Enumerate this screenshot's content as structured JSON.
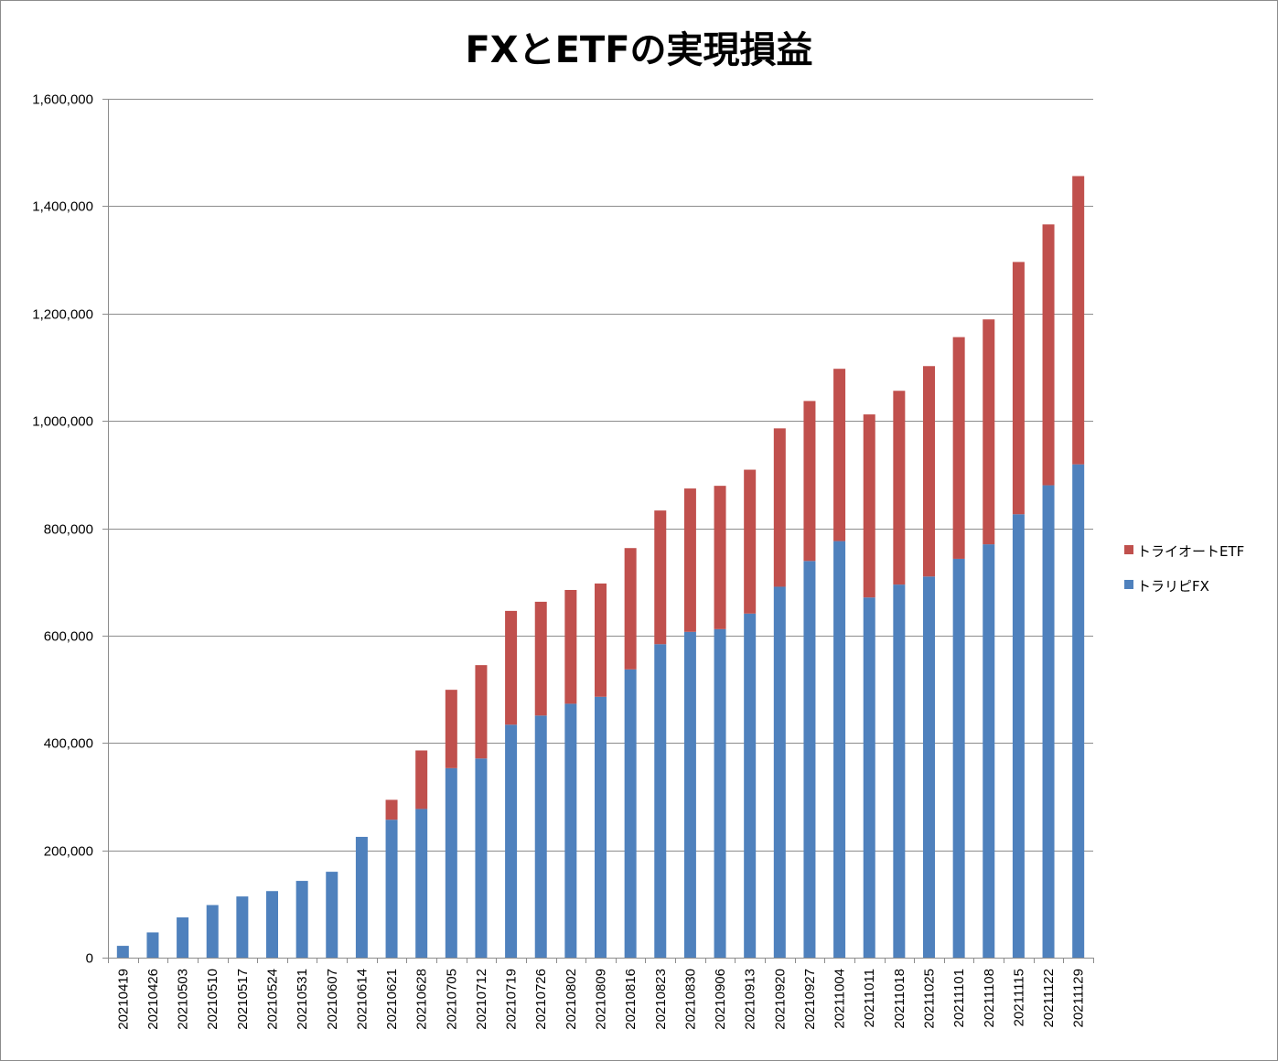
{
  "chart_data": {
    "type": "bar",
    "stacked": true,
    "title": "FXとETFの実現損益",
    "xlabel": "",
    "ylabel": "",
    "ylim": [
      0,
      1600000
    ],
    "yticks": [
      "0",
      "200,000",
      "400,000",
      "600,000",
      "800,000",
      "1,000,000",
      "1,200,000",
      "1,400,000",
      "1,600,000"
    ],
    "grid": true,
    "legend_position": "right",
    "categories": [
      "20210419",
      "20210426",
      "20210503",
      "20210510",
      "20210517",
      "20210524",
      "20210531",
      "20210607",
      "20210614",
      "20210621",
      "20210628",
      "20210705",
      "20210712",
      "20210719",
      "20210726",
      "20210802",
      "20210809",
      "20210816",
      "20210823",
      "20210830",
      "20210906",
      "20210913",
      "20210920",
      "20210927",
      "20211004",
      "20211011",
      "20211018",
      "20211025",
      "20211101",
      "20211108",
      "20211115",
      "20211122",
      "20211129"
    ],
    "series": [
      {
        "name": "トラリピFX",
        "color": "#4f81bd",
        "values": [
          22000,
          47000,
          75000,
          98000,
          114000,
          124000,
          143000,
          160000,
          225000,
          257000,
          277000,
          353000,
          371000,
          434000,
          451000,
          473000,
          486000,
          537000,
          584000,
          607000,
          612000,
          641000,
          691000,
          739000,
          776000,
          671000,
          695000,
          710000,
          743000,
          770000,
          826000,
          880000,
          919000
        ]
      },
      {
        "name": "トライオートETF",
        "color": "#c0504d",
        "values": [
          0,
          0,
          0,
          0,
          0,
          0,
          0,
          0,
          0,
          37000,
          109000,
          146000,
          174000,
          212000,
          212000,
          212000,
          211000,
          226000,
          249000,
          267000,
          267000,
          268000,
          295000,
          298000,
          321000,
          341000,
          361000,
          392000,
          413000,
          419000,
          470000,
          486000,
          537000
        ]
      }
    ]
  }
}
